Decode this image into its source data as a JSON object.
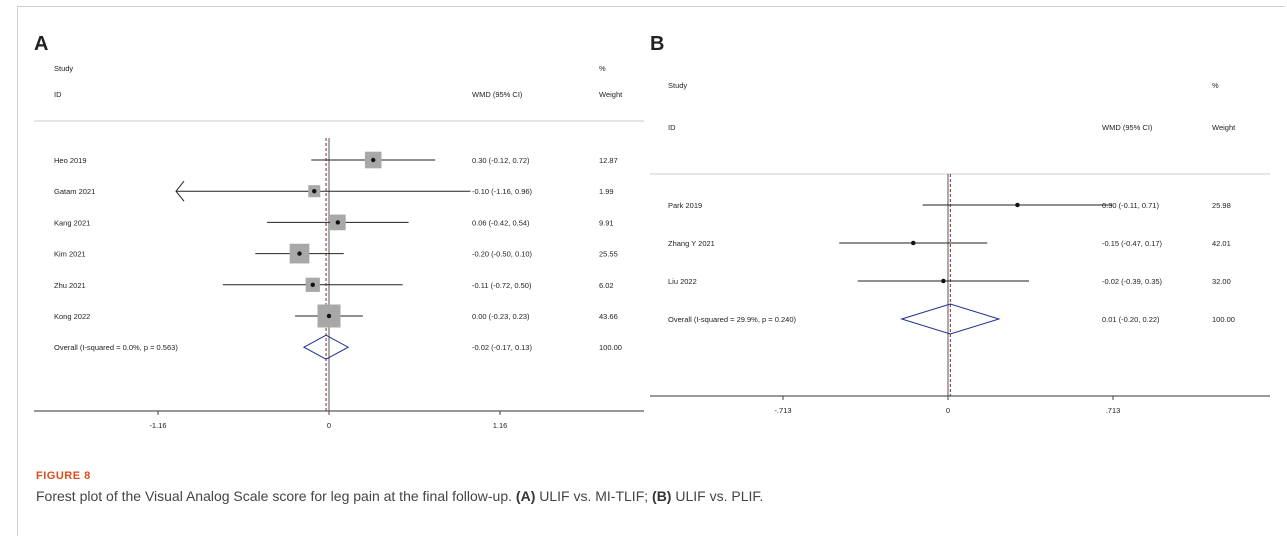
{
  "chart_data": [
    {
      "type": "forest",
      "panel": "A",
      "col_study": "Study",
      "col_id": "ID",
      "col_effect": "WMD (95% CI)",
      "col_pct": "%",
      "col_weight": "Weight",
      "xlim": [
        -1.75,
        1.75
      ],
      "ticks": [
        {
          "value": -1.16,
          "label": "-1.16"
        },
        {
          "value": 0,
          "label": "0"
        },
        {
          "value": 1.16,
          "label": "1.16"
        }
      ],
      "studies": [
        {
          "name": "Heo 2019",
          "est": 0.3,
          "lo": -0.12,
          "hi": 0.72,
          "ci_text": "0.30 (-0.12, 0.72)",
          "weight": 12.87,
          "weight_text": "12.87",
          "arrow_left": false
        },
        {
          "name": "Gatam 2021",
          "est": -0.1,
          "lo": -1.16,
          "hi": 0.96,
          "ci_text": "-0.10 (-1.16, 0.96)",
          "weight": 1.99,
          "weight_text": "1.99",
          "arrow_left": true
        },
        {
          "name": "Kang 2021",
          "est": 0.06,
          "lo": -0.42,
          "hi": 0.54,
          "ci_text": "0.06 (-0.42, 0.54)",
          "weight": 9.91,
          "weight_text": "9.91",
          "arrow_left": false
        },
        {
          "name": "Kim 2021",
          "est": -0.2,
          "lo": -0.5,
          "hi": 0.1,
          "ci_text": "-0.20 (-0.50, 0.10)",
          "weight": 25.55,
          "weight_text": "25.55",
          "arrow_left": false
        },
        {
          "name": "Zhu 2021",
          "est": -0.11,
          "lo": -0.72,
          "hi": 0.5,
          "ci_text": "-0.11 (-0.72, 0.50)",
          "weight": 6.02,
          "weight_text": "6.02",
          "arrow_left": false
        },
        {
          "name": "Kong 2022",
          "est": 0.0,
          "lo": -0.23,
          "hi": 0.23,
          "ci_text": "0.00 (-0.23, 0.23)",
          "weight": 43.66,
          "weight_text": "43.66",
          "arrow_left": false
        }
      ],
      "overall": {
        "label": "Overall  (I-squared = 0.0%, p = 0.563)",
        "est": -0.02,
        "lo": -0.17,
        "hi": 0.13,
        "ci_text": "-0.02 (-0.17, 0.13)",
        "weight_text": "100.00"
      }
    },
    {
      "type": "forest",
      "panel": "B",
      "col_study": "Study",
      "col_id": "ID",
      "col_effect": "WMD (95% CI)",
      "col_pct": "%",
      "col_weight": "Weight",
      "xlim": [
        -1.05,
        1.05
      ],
      "ticks": [
        {
          "value": -0.713,
          "label": "-.713"
        },
        {
          "value": 0,
          "label": "0"
        },
        {
          "value": 0.713,
          "label": ".713"
        }
      ],
      "studies": [
        {
          "name": "Park 2019",
          "est": 0.3,
          "lo": -0.11,
          "hi": 0.71,
          "ci_text": "0.30 (-0.11, 0.71)",
          "weight": 25.98,
          "weight_text": "25.98",
          "arrow_left": false
        },
        {
          "name": "Zhang Y 2021",
          "est": -0.15,
          "lo": -0.47,
          "hi": 0.17,
          "ci_text": "-0.15 (-0.47, 0.17)",
          "weight": 42.01,
          "weight_text": "42.01",
          "arrow_left": false
        },
        {
          "name": "Liu 2022",
          "est": -0.02,
          "lo": -0.39,
          "hi": 0.35,
          "ci_text": "-0.02 (-0.39, 0.35)",
          "weight": 32.0,
          "weight_text": "32.00",
          "arrow_left": false
        }
      ],
      "overall": {
        "label": "Overall  (I-squared = 29.9%, p = 0.240)",
        "est": 0.01,
        "lo": -0.2,
        "hi": 0.22,
        "ci_text": "0.01 (-0.20, 0.22)",
        "weight_text": "100.00"
      }
    }
  ],
  "panel_labels": {
    "a": "A",
    "b": "B"
  },
  "caption": {
    "label": "FIGURE 8",
    "text_before": "Forest plot of the Visual Analog Scale score for leg pain at the final follow-up. ",
    "a_tag": "(A)",
    "a_text": " ULIF vs. MI-TLIF; ",
    "b_tag": "(B)",
    "b_text": " ULIF vs. PLIF."
  },
  "colors": {
    "diamond": "#1f2f8f",
    "null_line": "#7a1010",
    "box": "#a8a8a8",
    "text": "#222222"
  }
}
